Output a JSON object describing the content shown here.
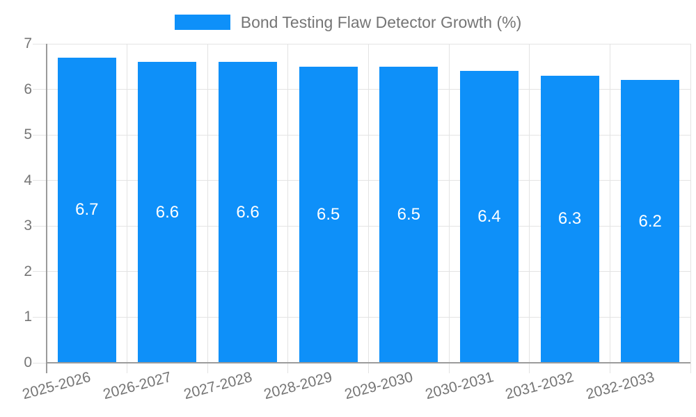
{
  "chart_data": {
    "type": "bar",
    "title": "Bond Testing Flaw Detector Growth (%)",
    "categories": [
      "2025-2026",
      "2026-2027",
      "2027-2028",
      "2028-2029",
      "2029-2030",
      "2030-2031",
      "2031-2032",
      "2032-2033"
    ],
    "values": [
      6.7,
      6.6,
      6.6,
      6.5,
      6.5,
      6.4,
      6.3,
      6.2
    ],
    "bar_labels": [
      "6.7",
      "6.6",
      "6.6",
      "6.5",
      "6.5",
      "6.4",
      "6.3",
      "6.2"
    ],
    "xlabel": "",
    "ylabel": "",
    "ylim": [
      0,
      7
    ],
    "y_ticks": [
      "0",
      "1",
      "2",
      "3",
      "4",
      "5",
      "6",
      "7"
    ],
    "grid": true,
    "legend_position": "top-center",
    "colors": {
      "bar": "#0e90f9",
      "bar_label": "#ffffff",
      "grid_line": "#e3e3e3",
      "axis_line": "#9b9b9b",
      "tick_text": "#757575",
      "legend_text": "#757575",
      "background": "#ffffff"
    }
  }
}
